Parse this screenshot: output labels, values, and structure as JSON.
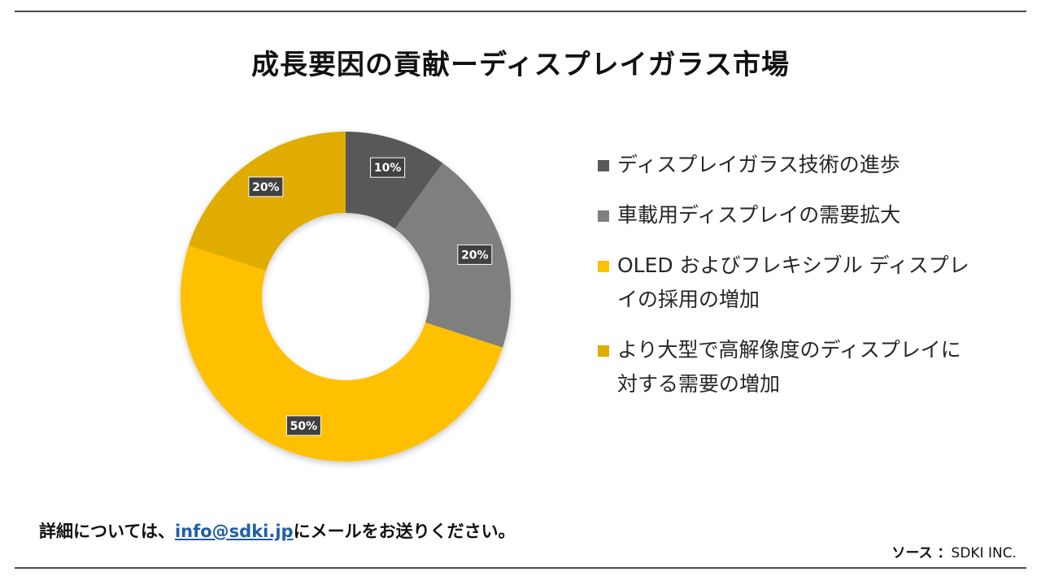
{
  "chart_data": {
    "type": "donut",
    "title": "成長要因の貢献ーディスプレイガラス市場",
    "slices": [
      {
        "label": "ディスプレイガラス技術の進歩",
        "value": 10,
        "display": "10%",
        "color": "#595959"
      },
      {
        "label": "車載用ディスプレイの需要拡大",
        "value": 20,
        "display": "20%",
        "color": "#7f7f7f"
      },
      {
        "label": "OLED およびフレキシブル ディスプレイの採用の増加",
        "value": 50,
        "display": "50%",
        "color": "#ffc000"
      },
      {
        "label": "より大型で高解像度のディスプレイに対する需要の増加",
        "value": 20,
        "display": "20%",
        "color": "#e0ac00"
      }
    ],
    "legend_position": "right"
  },
  "footer": {
    "prefix": "詳細については、",
    "email": "info@sdki.jp",
    "suffix": "にメールをお送りください。"
  },
  "source": {
    "label": "ソース ：",
    "value": "SDKI INC."
  }
}
